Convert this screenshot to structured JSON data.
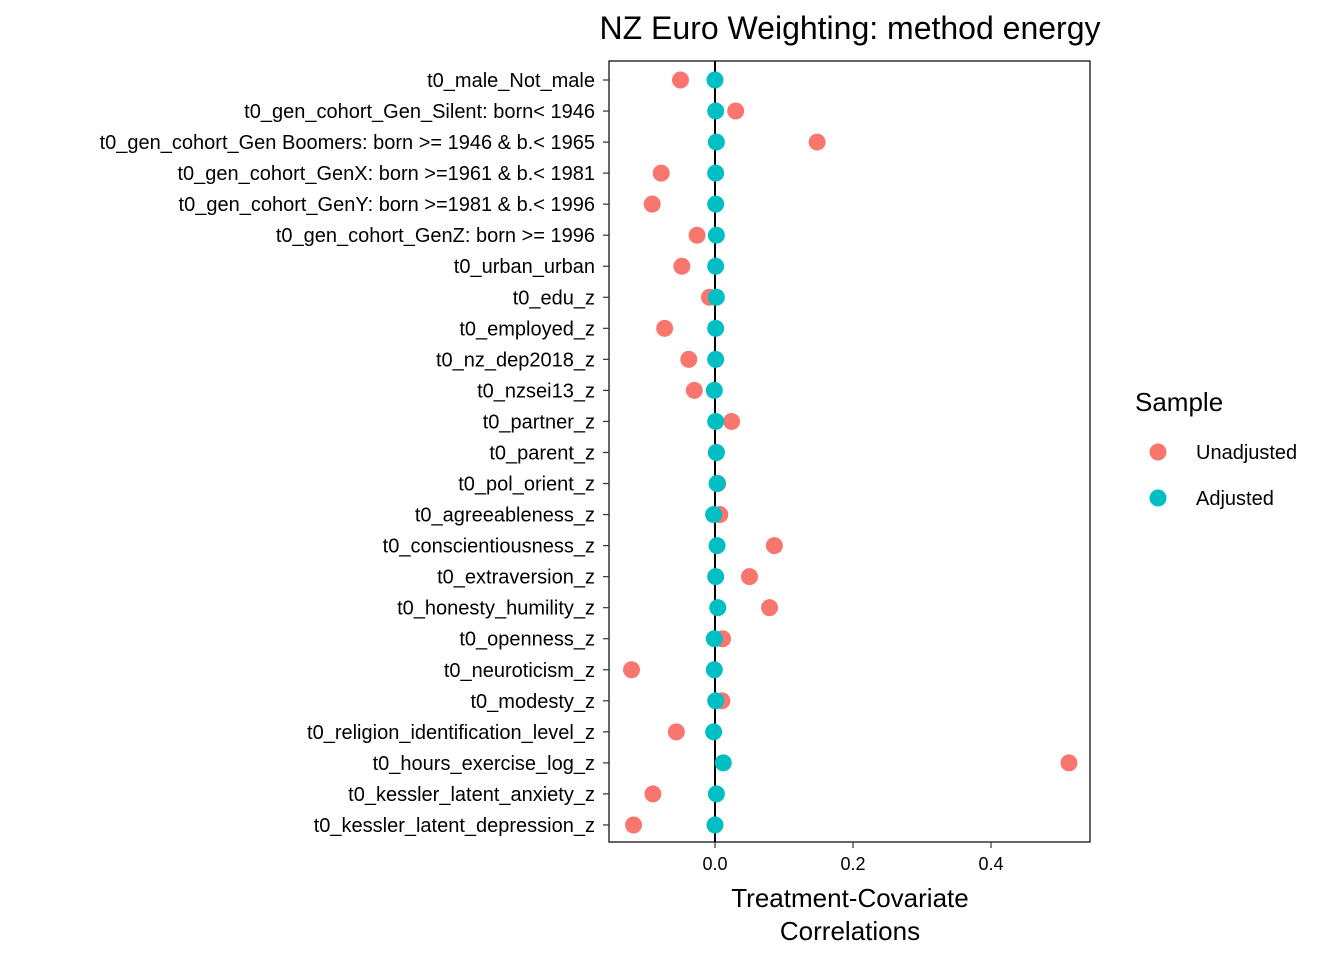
{
  "chart_data": {
    "type": "scatter",
    "title": "NZ Euro Weighting: method energy",
    "xlabel": [
      "Treatment-Covariate",
      "Correlations"
    ],
    "ylabel": "",
    "xlim": [
      -0.155,
      0.54
    ],
    "x_ticks": [
      0.0,
      0.2,
      0.4
    ],
    "x_tick_labels": [
      "0.0",
      "0.2",
      "0.4"
    ],
    "reference_line_x": 0,
    "grid": false,
    "legend_position": "right",
    "legend_title": "Sample",
    "categories": [
      "t0_male_Not_male",
      "t0_gen_cohort_Gen_Silent: born< 1946",
      "t0_gen_cohort_Gen Boomers: born >= 1946 & b.< 1965",
      "t0_gen_cohort_GenX: born >=1961 & b.< 1981",
      "t0_gen_cohort_GenY: born >=1981 & b.< 1996",
      "t0_gen_cohort_GenZ: born >= 1996",
      "t0_urban_urban",
      "t0_edu_z",
      "t0_employed_z",
      "t0_nz_dep2018_z",
      "t0_nzsei13_z",
      "t0_partner_z",
      "t0_parent_z",
      "t0_pol_orient_z",
      "t0_agreeableness_z",
      "t0_conscientiousness_z",
      "t0_extraversion_z",
      "t0_honesty_humility_z",
      "t0_openness_z",
      "t0_neuroticism_z",
      "t0_modesty_z",
      "t0_religion_identification_level_z",
      "t0_hours_exercise_log_z",
      "t0_kessler_latent_anxiety_z",
      "t0_kessler_latent_depression_z"
    ],
    "series": [
      {
        "name": "Unadjusted",
        "color": "#F8766D",
        "values": [
          -0.05,
          0.03,
          0.148,
          -0.078,
          -0.091,
          -0.026,
          -0.048,
          -0.008,
          -0.073,
          -0.038,
          -0.03,
          0.024,
          0.002,
          0.004,
          0.007,
          0.086,
          0.05,
          0.079,
          0.011,
          -0.121,
          0.01,
          -0.056,
          0.513,
          -0.09,
          -0.118
        ]
      },
      {
        "name": "Adjusted",
        "color": "#00BFC4",
        "values": [
          0.0,
          0.001,
          0.002,
          0.001,
          0.001,
          0.002,
          0.001,
          0.002,
          0.001,
          0.001,
          -0.001,
          0.001,
          0.002,
          0.003,
          -0.002,
          0.003,
          0.001,
          0.004,
          -0.001,
          -0.001,
          0.001,
          -0.002,
          0.012,
          0.002,
          0.0
        ]
      }
    ]
  }
}
